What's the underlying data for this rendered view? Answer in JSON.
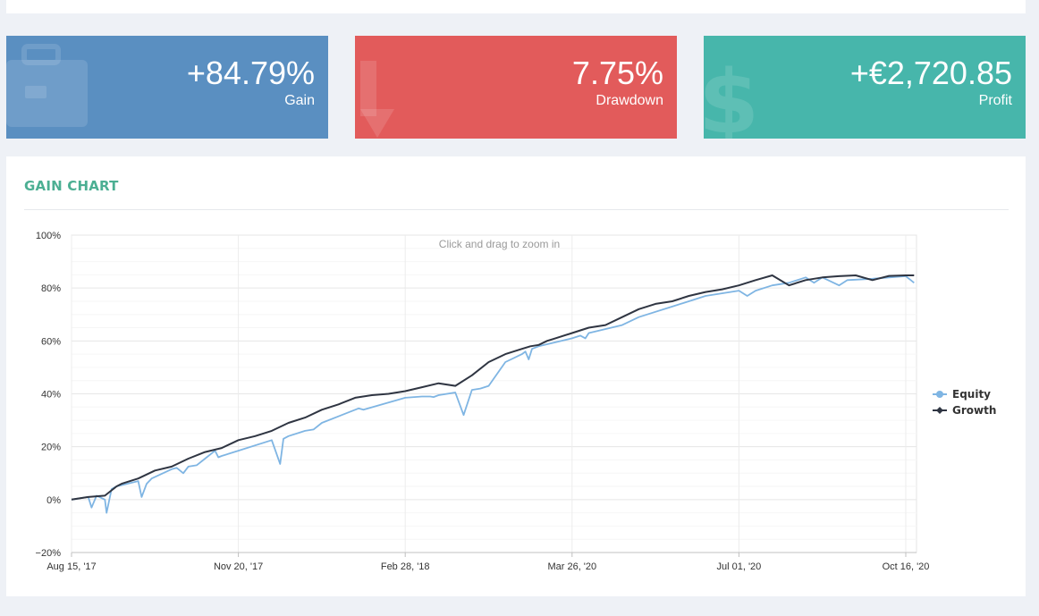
{
  "stats": {
    "gain": {
      "value": "+84.79%",
      "label": "Gain",
      "icon": "briefcase-icon",
      "color": "#5a8fc1"
    },
    "drawdown": {
      "value": "7.75%",
      "label": "Drawdown",
      "icon": "arrow-down-icon",
      "color": "#e25b5b"
    },
    "profit": {
      "value": "+€2,720.85",
      "label": "Profit",
      "icon": "dollar-icon",
      "color": "#47b6ab"
    }
  },
  "chart": {
    "title": "GAIN CHART",
    "title_color": "#4caf93",
    "zoom_hint": "Click and drag to zoom in"
  },
  "chart_data": {
    "type": "line",
    "title": "GAIN CHART",
    "x_tick_labels": [
      "Aug 15, '17",
      "Nov 20, '17",
      "Feb 28, '18",
      "Mar 26, '20",
      "Jul 01, '20",
      "Oct 16, '20"
    ],
    "ylim": [
      -20,
      100
    ],
    "y_ticks": [
      -20,
      0,
      20,
      40,
      60,
      80,
      100
    ],
    "y_tick_labels": [
      "−20%",
      "0%",
      "20%",
      "40%",
      "60%",
      "80%",
      "100%"
    ],
    "grid": true,
    "legend_position": "right",
    "series": [
      {
        "name": "Growth",
        "color": "#2f3542",
        "x": [
          0,
          0.1,
          0.2,
          0.27,
          0.3,
          0.4,
          0.5,
          0.6,
          0.7,
          0.8,
          0.9,
          1,
          1.1,
          1.2,
          1.3,
          1.4,
          1.5,
          1.6,
          1.7,
          1.8,
          1.9,
          2,
          2.1,
          2.2,
          2.3,
          2.4,
          2.5,
          2.6,
          2.7,
          2.75,
          2.8,
          2.85,
          2.9,
          3,
          3.1,
          3.2,
          3.3,
          3.4,
          3.5,
          3.6,
          3.7,
          3.8,
          3.9,
          4,
          4.1,
          4.2,
          4.3,
          4.4,
          4.5,
          4.6,
          4.7,
          4.8,
          4.9,
          5,
          5.05
        ],
        "values": [
          0,
          1,
          1.5,
          5,
          6,
          8,
          11,
          12.5,
          15.5,
          18,
          19.5,
          22.5,
          24,
          26,
          29,
          31,
          34,
          36,
          38.5,
          39.5,
          40,
          41,
          42.5,
          44,
          43,
          47,
          52,
          55,
          57,
          58,
          58.5,
          60,
          61,
          63,
          65,
          66,
          69,
          72,
          74,
          75,
          77,
          78.5,
          79.5,
          81,
          83,
          84.8,
          81,
          83,
          84,
          84.5,
          84.8,
          83,
          84.6,
          84.8,
          84.8
        ]
      },
      {
        "name": "Equity",
        "color": "#7fb5e3",
        "x": [
          0,
          0.1,
          0.12,
          0.15,
          0.2,
          0.21,
          0.24,
          0.27,
          0.4,
          0.42,
          0.45,
          0.48,
          0.6,
          0.63,
          0.67,
          0.7,
          0.75,
          0.8,
          0.86,
          0.88,
          0.9,
          1,
          1.2,
          1.25,
          1.27,
          1.3,
          1.4,
          1.45,
          1.5,
          1.7,
          1.72,
          1.75,
          2.0,
          2.1,
          2.15,
          2.17,
          2.2,
          2.3,
          2.35,
          2.4,
          2.45,
          2.5,
          2.6,
          2.7,
          2.72,
          2.74,
          2.76,
          2.8,
          3,
          3.05,
          3.08,
          3.1,
          3.3,
          3.4,
          3.6,
          3.7,
          3.8,
          4,
          4.05,
          4.1,
          4.2,
          4.3,
          4.4,
          4.45,
          4.5,
          4.6,
          4.65,
          4.8,
          4.9,
          5,
          5.05
        ],
        "values": [
          0,
          1,
          -3,
          1.5,
          0,
          -5,
          4,
          5,
          7,
          1,
          6,
          8,
          11.5,
          12,
          10,
          12.5,
          13,
          15.5,
          18.5,
          16,
          16.5,
          18.5,
          22.5,
          13.5,
          23,
          24,
          26,
          26.5,
          29,
          34,
          34.5,
          34,
          38.5,
          39,
          39,
          38.8,
          39.5,
          40.5,
          32,
          41.5,
          42,
          43,
          52,
          55,
          56,
          53,
          57,
          58,
          61,
          62,
          61,
          63,
          66,
          69,
          73,
          75,
          77,
          79,
          77,
          79,
          81,
          82,
          84,
          82,
          84,
          81,
          83,
          83.5,
          84,
          84.5,
          82
        ]
      }
    ]
  }
}
